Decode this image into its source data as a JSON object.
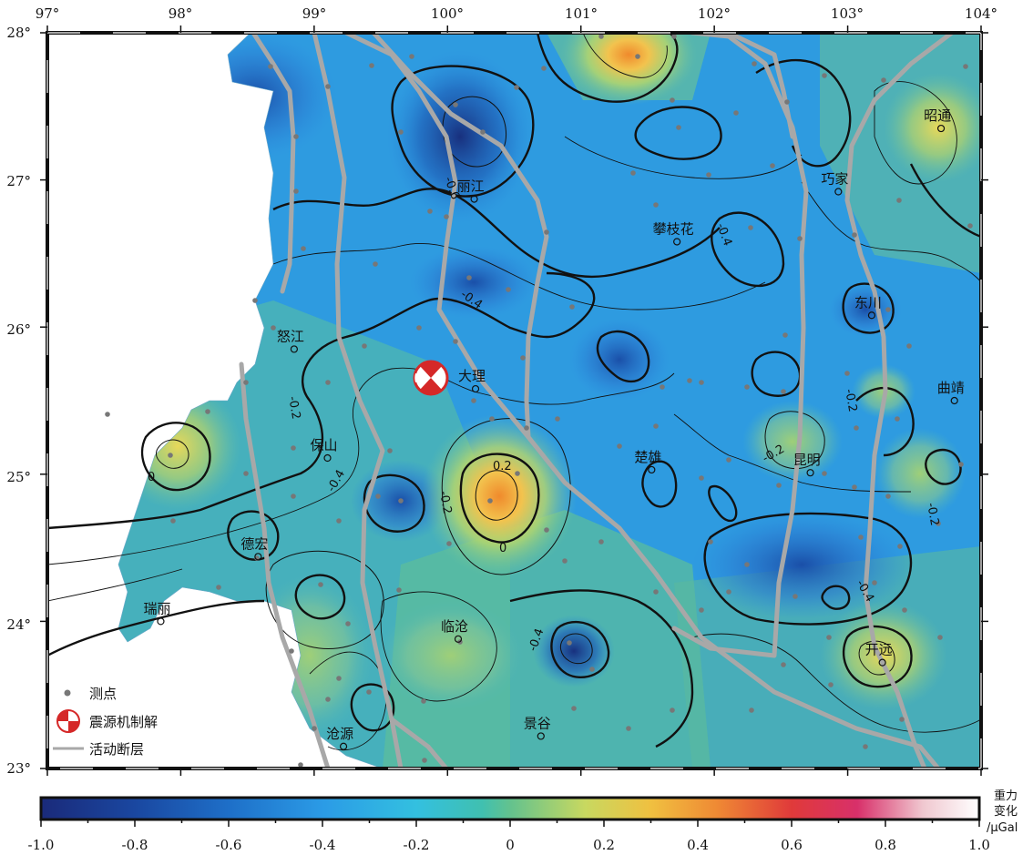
{
  "map": {
    "lon_labels": [
      "97°",
      "98°",
      "99°",
      "100°",
      "101°",
      "102°",
      "103°",
      "104°"
    ],
    "lat_labels": [
      "28°",
      "27°",
      "26°",
      "25°",
      "24°",
      "23°"
    ],
    "cities": [
      {
        "name": "昭通",
        "lon": 103.7,
        "lat": 27.35
      },
      {
        "name": "丽江",
        "lon": 100.2,
        "lat": 26.87
      },
      {
        "name": "巧家",
        "lon": 102.93,
        "lat": 26.92
      },
      {
        "name": "攀枝花",
        "lon": 101.72,
        "lat": 26.58
      },
      {
        "name": "东川",
        "lon": 103.18,
        "lat": 26.08
      },
      {
        "name": "怒江",
        "lon": 98.85,
        "lat": 25.85
      },
      {
        "name": "大理",
        "lon": 100.21,
        "lat": 25.58
      },
      {
        "name": "曲靖",
        "lon": 103.8,
        "lat": 25.5
      },
      {
        "name": "保山",
        "lon": 99.1,
        "lat": 25.11
      },
      {
        "name": "楚雄",
        "lon": 101.53,
        "lat": 25.03
      },
      {
        "name": "昆明",
        "lon": 102.72,
        "lat": 25.01
      },
      {
        "name": "德宏",
        "lon": 98.58,
        "lat": 24.44
      },
      {
        "name": "瑞丽",
        "lon": 97.85,
        "lat": 24.0
      },
      {
        "name": "临沧",
        "lon": 100.08,
        "lat": 23.88
      },
      {
        "name": "开远",
        "lon": 103.26,
        "lat": 23.72
      },
      {
        "name": "景谷",
        "lon": 100.7,
        "lat": 23.22
      },
      {
        "name": "沧源",
        "lon": 99.22,
        "lat": 23.15
      }
    ],
    "contour_labels": [
      "-0.6",
      "-0.4",
      "-0.4",
      "-0.2",
      "0",
      "-0.2",
      "-0.4",
      "0.2",
      "-0.2",
      "0",
      "-0.4",
      "-0.2",
      "-0.2",
      "-0.4"
    ],
    "focal_mechanism": {
      "lon": 99.86,
      "lat": 25.67
    },
    "colorbar": {
      "ticks": [
        "-1.0",
        "-0.8",
        "-0.6",
        "-0.4",
        "-0.2",
        "0",
        "0.2",
        "0.4",
        "0.6",
        "0.8",
        "1.0"
      ],
      "unit_line1": "重力",
      "unit_line2": "变化",
      "unit_line3": "/μGal",
      "colors": [
        "#1a237e",
        "#1565c0",
        "#1e88e5",
        "#29b6f6",
        "#26c6da",
        "#4db6ac",
        "#9ccc65",
        "#f0e68c",
        "#f5a04a",
        "#e53935",
        "#d81b60",
        "#f3c6cc",
        "#ffffff"
      ]
    },
    "legend": {
      "station_label": "测点",
      "focal_label": "震源机制解",
      "fault_label": "活动断层"
    },
    "colors": {
      "fault": "#a8a8a8",
      "station": "#777777",
      "contour": "#111111"
    }
  }
}
